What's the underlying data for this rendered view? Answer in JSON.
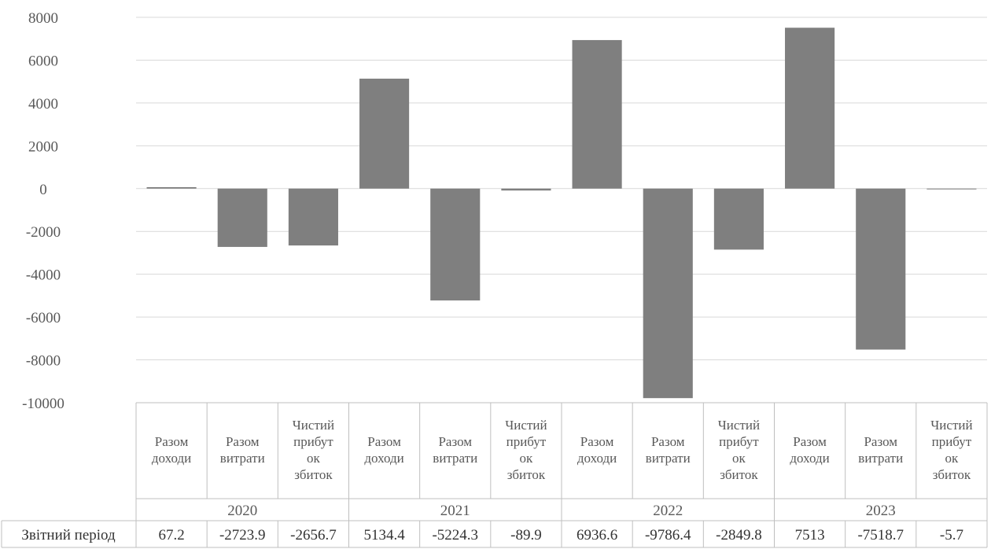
{
  "chart_data": {
    "type": "bar",
    "years": [
      "2020",
      "2021",
      "2022",
      "2023"
    ],
    "categories_per_year": [
      [
        "Разом",
        "доходи"
      ],
      [
        "Разом",
        "витрати"
      ],
      [
        "Чистий",
        "прибут",
        "ок",
        "збиток"
      ]
    ],
    "series": [
      {
        "name": "Звітний період",
        "values": [
          67.2,
          -2723.9,
          -2656.7,
          5134.4,
          -5224.3,
          -89.9,
          6936.6,
          -9786.4,
          -2849.8,
          7513,
          -7518.7,
          -5.7
        ],
        "labels": [
          "67.2",
          "-2723.9",
          "-2656.7",
          "5134.4",
          "-5224.3",
          "-89.9",
          "6936.6",
          "-9786.4",
          "-2849.8",
          "7513",
          "-7518.7",
          "-5.7"
        ]
      }
    ],
    "yticks": [
      "8000",
      "6000",
      "4000",
      "2000",
      "0",
      "-2000",
      "-4000",
      "-6000",
      "-8000",
      "-10000"
    ],
    "ylim": [
      -10000,
      8000
    ],
    "grid": true,
    "legend": "data-table",
    "colors": {
      "bar": "#7f7f7f",
      "grid": "#d9d9d9",
      "border": "#bfbfbf"
    }
  }
}
